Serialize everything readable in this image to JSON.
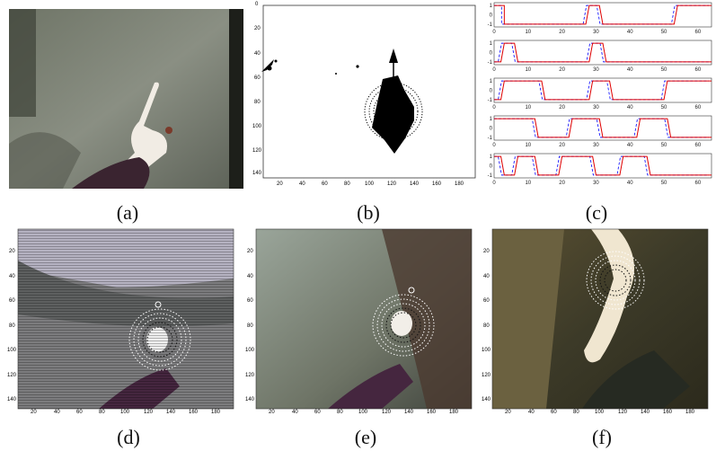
{
  "captions": {
    "a": "(a)",
    "b": "(b)",
    "c": "(c)",
    "d": "(d)",
    "e": "(e)",
    "f": "(f)"
  },
  "panel_b": {
    "x_ticks": [
      "20",
      "40",
      "60",
      "80",
      "100",
      "120",
      "140",
      "160",
      "180"
    ],
    "y_ticks": [
      "0",
      "20",
      "40",
      "60",
      "80",
      "100",
      "120",
      "140"
    ]
  },
  "panel_c": {
    "x_ticks": [
      "0",
      "10",
      "20",
      "30",
      "40",
      "50",
      "60"
    ],
    "y_ticks": [
      "1",
      "0",
      "-1"
    ]
  },
  "panel_def": {
    "x_ticks": [
      "20",
      "40",
      "60",
      "80",
      "100",
      "120",
      "140",
      "160",
      "180"
    ],
    "y_ticks": [
      "20",
      "40",
      "60",
      "80",
      "100",
      "120",
      "140"
    ]
  },
  "colors": {
    "signal_solid": "#e00000",
    "signal_dashed": "#1a1aff",
    "contour_dark": "#111111",
    "contour_light": "#ffffff"
  },
  "icons": {
    "direction_arrow": "arrow-up-icon"
  }
}
